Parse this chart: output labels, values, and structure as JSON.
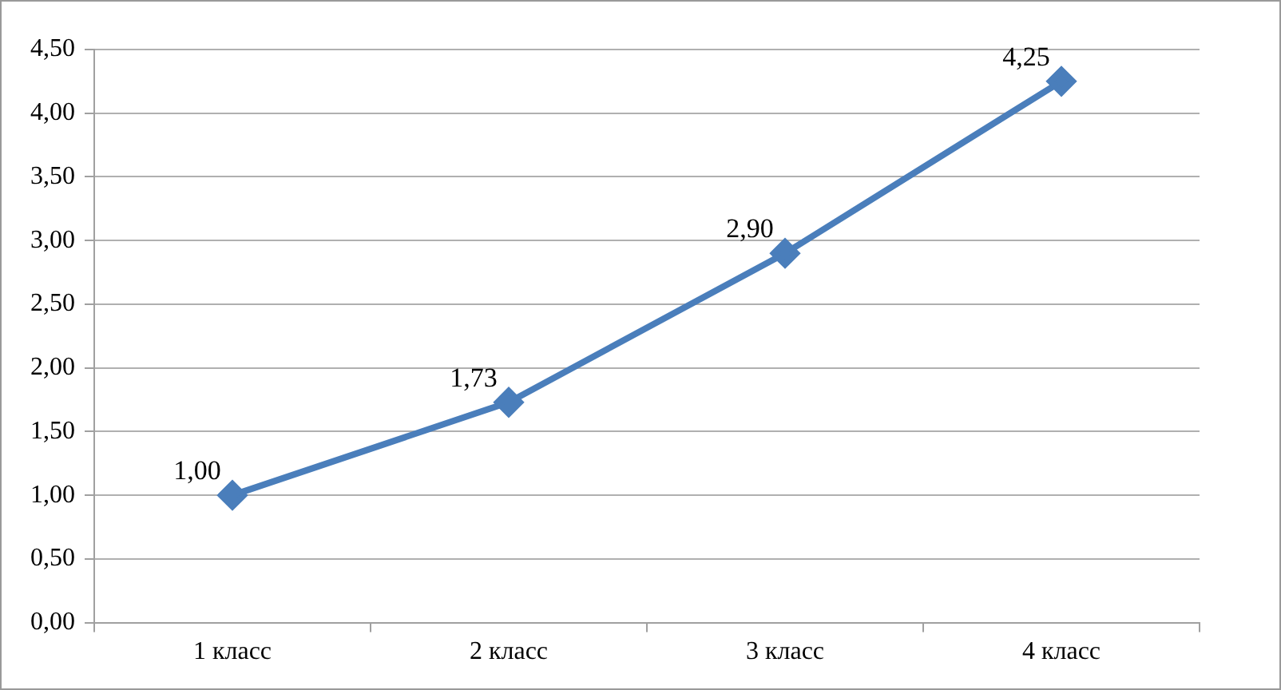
{
  "chart_data": {
    "type": "line",
    "categories": [
      "1 класс",
      "2 класс",
      "3 класс",
      "4 класс"
    ],
    "values": [
      1.0,
      1.73,
      2.9,
      4.25
    ],
    "value_labels": [
      "1,00",
      "1,73",
      "2,90",
      "4,25"
    ],
    "color": "#4a7ebb",
    "marker": "diamond",
    "line_style": "solid",
    "ylim": [
      0,
      4.5
    ],
    "yticks": [
      {
        "value": 0,
        "label": "0,00"
      },
      {
        "value": 0.5,
        "label": "0,50"
      },
      {
        "value": 1,
        "label": "1,00"
      },
      {
        "value": 1.5,
        "label": "1,50"
      },
      {
        "value": 2,
        "label": "2,00"
      },
      {
        "value": 2.5,
        "label": "2,50"
      },
      {
        "value": 3,
        "label": "3,00"
      },
      {
        "value": 3.5,
        "label": "3,50"
      },
      {
        "value": 4,
        "label": "4,00"
      },
      {
        "value": 4.5,
        "label": "4,50"
      }
    ],
    "grid": "y"
  }
}
